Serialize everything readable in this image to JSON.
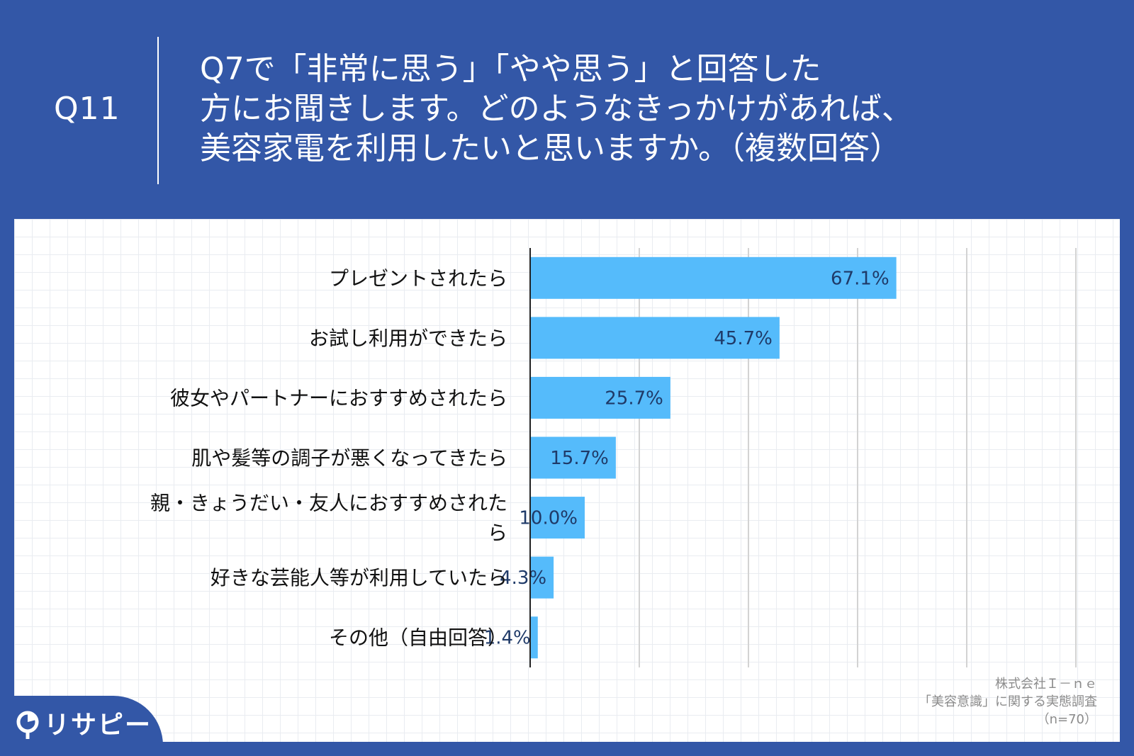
{
  "question": {
    "number": "Q11",
    "lines": [
      "Q7で「非常に思う」「やや思う」と回答した",
      "方にお聞きします。どのようなきっかけがあれば、",
      "美容家電を利用したいと思いますか。（複数回答）"
    ]
  },
  "chart_data": {
    "type": "bar",
    "orientation": "horizontal",
    "categories": [
      "プレゼントされたら",
      "お試し利用ができたら",
      "彼女やパートナーにおすすめされたら",
      "肌や髪等の調子が悪くなってきたら",
      "親・きょうだい・友人におすすめされたら",
      "好きな芸能人等が利用していたら",
      "その他（自由回答）"
    ],
    "category_label_lines": [
      [
        "プレゼントされたら"
      ],
      [
        "お試し利用ができたら"
      ],
      [
        "彼女やパートナーにおすすめされたら"
      ],
      [
        "肌や髪等の調子が悪くなってきたら"
      ],
      [
        "親・きょうだい・友人におすすめされた",
        "ら"
      ],
      [
        "好きな芸能人等が利用していたら"
      ],
      [
        "その他（自由回答）"
      ]
    ],
    "values": [
      67.1,
      45.7,
      25.7,
      15.7,
      10.0,
      4.3,
      1.4
    ],
    "value_labels": [
      "67.1%",
      "45.7%",
      "25.7%",
      "15.7%",
      "10.0%",
      "4.3%",
      "1.4%"
    ],
    "xlim": [
      0,
      100
    ],
    "unit": "%",
    "grid": true,
    "bar_color": "#55bbfb",
    "label_color": "#1f3a68"
  },
  "source": {
    "company": "株式会社Ｉ－ｎｅ",
    "survey": "「美容意識」に関する実態調査",
    "sample": "（n=70）"
  },
  "logo": {
    "text": "リサピー"
  },
  "colors": {
    "header_bg": "#3357a7",
    "panel_bg": "#ffffff",
    "grid_line": "#e9ecf1"
  }
}
